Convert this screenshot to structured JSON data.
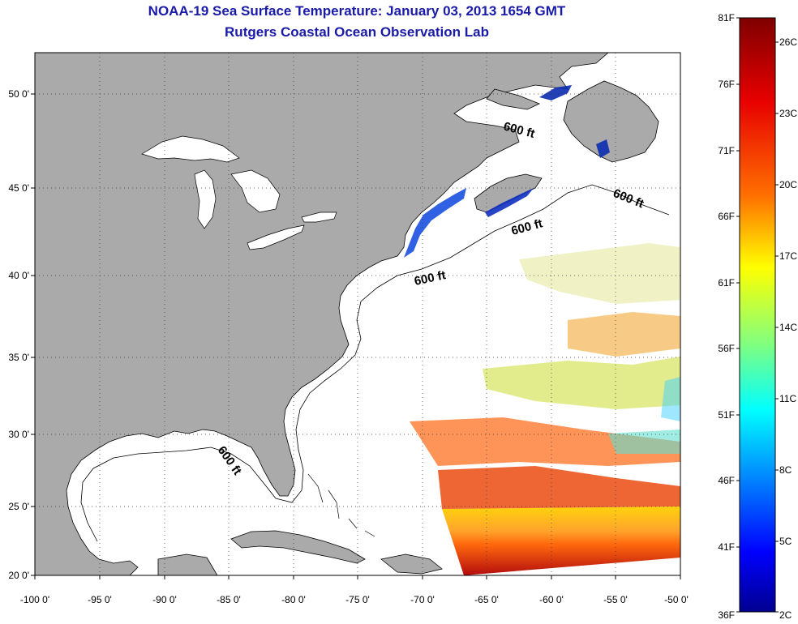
{
  "header": {
    "title_line1": "NOAA-19 Sea Surface Temperature:  January 03, 2013 1654 GMT",
    "title_line2": "Rutgers Coastal Ocean Observation Lab"
  },
  "map": {
    "lon_labels": [
      "-100 0'",
      "-95 0'",
      "-90 0'",
      "-85 0'",
      "-80 0'",
      "-75 0'",
      "-70 0'",
      "-65 0'",
      "-60 0'",
      "-55 0'",
      "-50 0'"
    ],
    "lat_labels": [
      "20 0'",
      "25 0'",
      "30 0'",
      "35 0'",
      "40 0'",
      "45 0'",
      "50 0'"
    ],
    "contour_labels": [
      "600 ft",
      "600 ft",
      "600 ft",
      "600 ft",
      "600 ft"
    ],
    "land_color": "#aaaaaa",
    "water_color": "#ffffff"
  },
  "colorbar": {
    "fahrenheit_labels": [
      "81F",
      "76F",
      "71F",
      "66F",
      "61F",
      "56F",
      "51F",
      "46F",
      "41F",
      "36F"
    ],
    "celsius_labels": [
      "26C",
      "23C",
      "20C",
      "17C",
      "14C",
      "11C",
      "8C",
      "5C",
      "2C"
    ],
    "colors": [
      "#7f0000",
      "#ff0000",
      "#ff8000",
      "#ffff00",
      "#80ff80",
      "#00ffff",
      "#0080ff",
      "#0000ff",
      "#00008f"
    ]
  }
}
